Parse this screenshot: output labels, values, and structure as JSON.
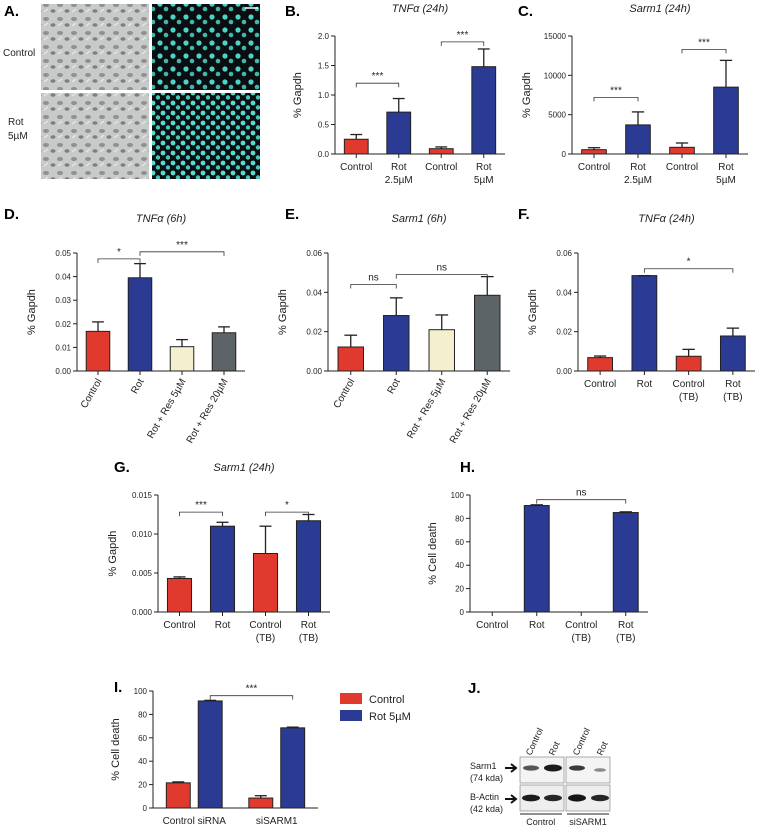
{
  "colors": {
    "control": "#e03a2f",
    "rot": "#2b3a92",
    "res5": "#f3efcf",
    "res20": "#5c6468",
    "micro_fluor": "#0a0e10",
    "nuclei": "#4fd3c8"
  },
  "panelA": {
    "letter": "A.",
    "row_labels": [
      "Control",
      "Rot\n5µM"
    ]
  },
  "legend": {
    "items": [
      {
        "name": "Control",
        "color": "#e03a2f"
      },
      {
        "name": "Rot 5µM",
        "color": "#2b3a92"
      }
    ]
  },
  "panelJ": {
    "letter": "J.",
    "lane_labels": [
      "Control",
      "Rot",
      "Control",
      "Rot"
    ],
    "row_labels": [
      "Sarm1",
      "(74 kda)",
      "B-Actin",
      "(42 kda)"
    ],
    "group_labels": [
      "Control\nsiRNA",
      "siSARM1"
    ]
  },
  "chart_data": [
    {
      "id": "B",
      "letter": "B.",
      "type": "bar",
      "title": "TNFα (24h)",
      "ylabel": "% Gapdh",
      "ylim": [
        0,
        2.0
      ],
      "yticks": [
        "0.0",
        "0.5",
        "1.0",
        "1.5",
        "2.0"
      ],
      "categories": [
        "Control",
        "Rot\n2.5µM",
        "Control",
        "Rot\n5µM"
      ],
      "values": [
        0.25,
        0.71,
        0.09,
        1.48
      ],
      "errors": [
        0.08,
        0.23,
        0.03,
        0.3
      ],
      "bar_colors": [
        "control",
        "rot",
        "control",
        "rot"
      ],
      "significance": [
        {
          "from": 0,
          "to": 1,
          "y": 1.2,
          "label": "***"
        },
        {
          "from": 2,
          "to": 3,
          "y": 1.9,
          "label": "***"
        }
      ]
    },
    {
      "id": "C",
      "letter": "C.",
      "type": "bar",
      "title": "Sarm1 (24h)",
      "ylabel": "% Gapdh",
      "ylim": [
        0,
        15000
      ],
      "yticks": [
        "0",
        "5000",
        "10000",
        "15000"
      ],
      "categories": [
        "Control",
        "Rot\n2.5µM",
        "Control",
        "Rot\n5µM"
      ],
      "values": [
        550,
        3700,
        850,
        8500
      ],
      "errors": [
        250,
        1650,
        550,
        3400
      ],
      "bar_colors": [
        "control",
        "rot",
        "control",
        "rot"
      ],
      "significance": [
        {
          "from": 0,
          "to": 1,
          "y": 7200,
          "label": "***"
        },
        {
          "from": 2,
          "to": 3,
          "y": 13300,
          "label": "***"
        }
      ]
    },
    {
      "id": "D",
      "letter": "D.",
      "type": "bar",
      "title": "TNFα (6h)",
      "ylabel": "% Gapdh",
      "ylim": [
        0,
        0.05
      ],
      "yticks": [
        "0.00",
        "0.01",
        "0.02",
        "0.03",
        "0.04",
        "0.05"
      ],
      "categories": [
        "Control",
        "Rot",
        "Rot + Res 5µM",
        "Rot + Res 20µM"
      ],
      "rotate_labels": true,
      "values": [
        0.0168,
        0.0395,
        0.0103,
        0.0162
      ],
      "errors": [
        0.004,
        0.006,
        0.003,
        0.0025
      ],
      "bar_colors": [
        "control",
        "rot",
        "res5",
        "res20"
      ],
      "significance": [
        {
          "from": 0,
          "to": 1,
          "y": 0.0475,
          "label": "*"
        },
        {
          "from": 1,
          "to": 3,
          "y": 0.0505,
          "label": "***"
        }
      ]
    },
    {
      "id": "E",
      "letter": "E.",
      "type": "bar",
      "title": "Sarm1 (6h)",
      "ylabel": "% Gapdh",
      "ylim": [
        0,
        0.06
      ],
      "yticks": [
        "0.00",
        "0.02",
        "0.04",
        "0.06"
      ],
      "categories": [
        "Control",
        "Rot",
        "Rot + Res 5µM",
        "Rot + Res 20µM"
      ],
      "rotate_labels": true,
      "values": [
        0.0122,
        0.0282,
        0.021,
        0.0385
      ],
      "errors": [
        0.006,
        0.009,
        0.0075,
        0.0095
      ],
      "bar_colors": [
        "control",
        "rot",
        "res5",
        "res20"
      ],
      "significance": [
        {
          "from": 0,
          "to": 1,
          "y": 0.044,
          "label": "ns"
        },
        {
          "from": 1,
          "to": 3,
          "y": 0.049,
          "label": "ns"
        }
      ]
    },
    {
      "id": "F",
      "letter": "F.",
      "type": "bar",
      "title": "TNFα (24h)",
      "ylabel": "% Gapdh",
      "ylim": [
        0,
        0.06
      ],
      "yticks": [
        "0.00",
        "0.02",
        "0.04",
        "0.06"
      ],
      "categories": [
        "Control",
        "Rot",
        "Control\n(TB)",
        "Rot\n(TB)"
      ],
      "values": [
        0.0068,
        0.0485,
        0.0075,
        0.0178
      ],
      "errors": [
        0.0008,
        0.0,
        0.0035,
        0.004
      ],
      "bar_colors": [
        "control",
        "rot",
        "control",
        "rot"
      ],
      "significance": [
        {
          "from": 1,
          "to": 3,
          "y": 0.052,
          "label": "*"
        }
      ]
    },
    {
      "id": "G",
      "letter": "G.",
      "type": "bar",
      "title": "Sarm1 (24h)",
      "ylabel": "% Gapdh",
      "ylim": [
        0,
        0.015
      ],
      "yticks": [
        "0.000",
        "0.005",
        "0.010",
        "0.015"
      ],
      "categories": [
        "Control",
        "Rot",
        "Control\n(TB)",
        "Rot\n(TB)"
      ],
      "values": [
        0.0043,
        0.011,
        0.0075,
        0.0117
      ],
      "errors": [
        0.0002,
        0.0005,
        0.0035,
        0.0008
      ],
      "bar_colors": [
        "control",
        "rot",
        "control",
        "rot"
      ],
      "significance": [
        {
          "from": 0,
          "to": 1,
          "y": 0.0128,
          "label": "***"
        },
        {
          "from": 2,
          "to": 3,
          "y": 0.0128,
          "label": "*"
        }
      ]
    },
    {
      "id": "H",
      "letter": "H.",
      "type": "bar",
      "title": "",
      "ylabel": "% Cell death",
      "ylim": [
        0,
        100
      ],
      "yticks": [
        "0",
        "20",
        "40",
        "60",
        "80",
        "100"
      ],
      "categories": [
        "Control",
        "Rot",
        "Control\n(TB)",
        "Rot\n(TB)"
      ],
      "values": [
        0,
        91,
        0,
        85
      ],
      "errors": [
        0,
        0.6,
        0,
        0.6
      ],
      "bar_colors": [
        "control",
        "rot",
        "control",
        "rot"
      ],
      "significance": [
        {
          "from": 1,
          "to": 3,
          "y": 96,
          "label": "ns"
        }
      ]
    },
    {
      "id": "I",
      "letter": "I.",
      "type": "grouped_bar",
      "title": "",
      "ylabel": "% Cell death",
      "ylim": [
        0,
        100
      ],
      "yticks": [
        "0",
        "20",
        "40",
        "60",
        "80",
        "100"
      ],
      "categories": [
        "Control siRNA",
        "siSARM1"
      ],
      "series": [
        {
          "name": "Control",
          "values": [
            21.5,
            8.5
          ],
          "errors": [
            0.8,
            2.0
          ],
          "color": "control"
        },
        {
          "name": "Rot 5µM",
          "values": [
            91.5,
            68.5
          ],
          "errors": [
            0.5,
            0.6
          ],
          "color": "rot"
        }
      ],
      "significance": [
        {
          "from": [
            0,
            1
          ],
          "to": [
            1,
            1
          ],
          "y": 96,
          "label": "***"
        }
      ]
    }
  ]
}
